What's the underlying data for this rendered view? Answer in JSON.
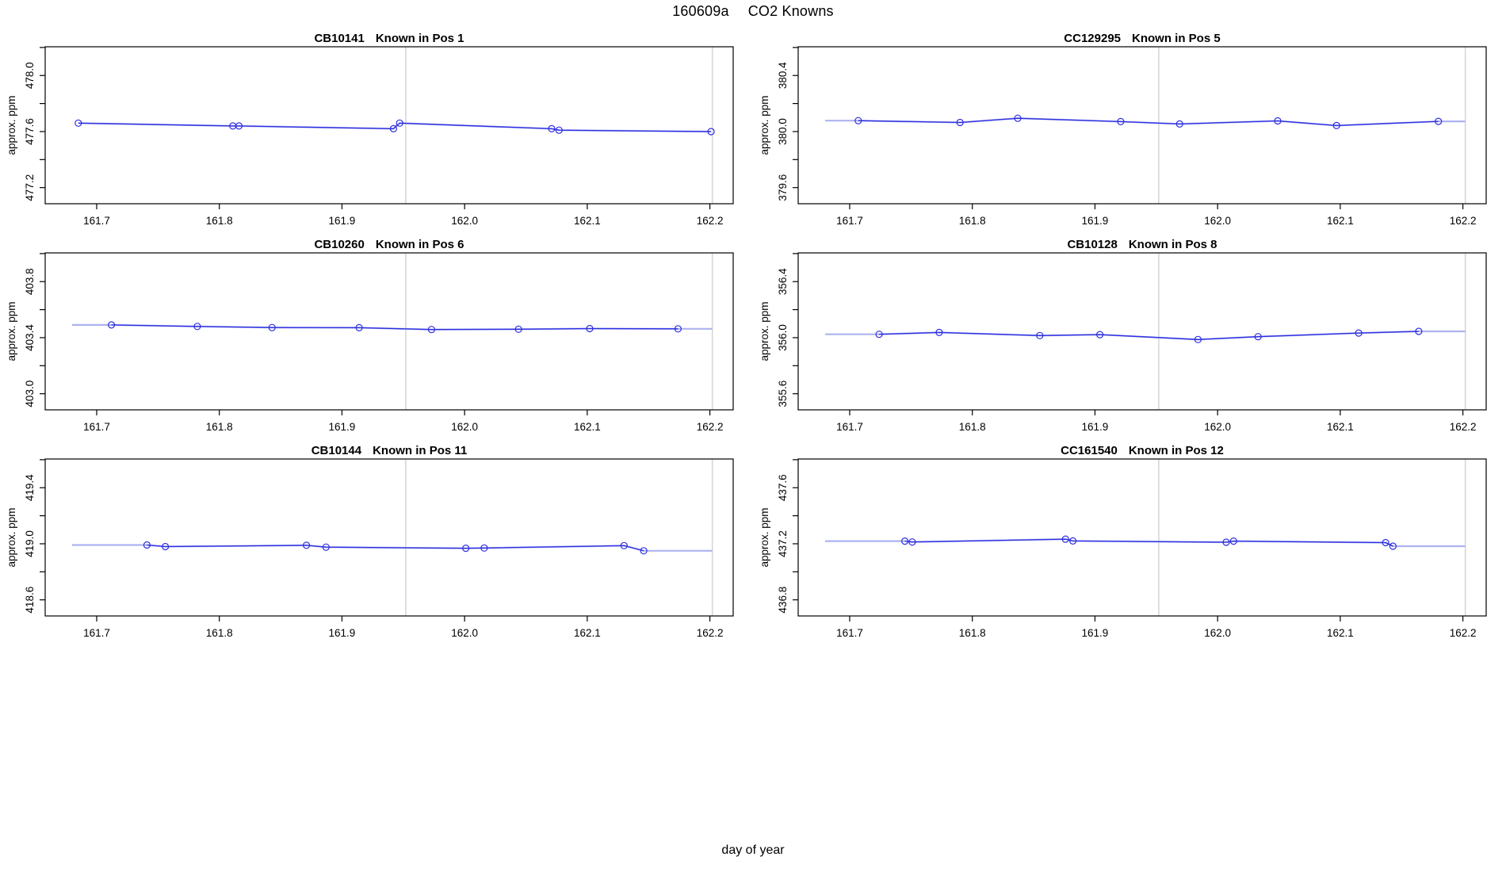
{
  "page_title": {
    "run_id": "160609a",
    "title": "CO2 Knowns"
  },
  "outer_xlabel": "day of year",
  "shared_axis": {
    "ylabel": "approx. ppm",
    "x_ticks": [
      161.7,
      161.8,
      161.9,
      162.0,
      162.1,
      162.2
    ],
    "xlim": [
      161.658,
      162.219
    ],
    "vlines": [
      161.952,
      162.202
    ],
    "grid": "off",
    "legend": "none"
  },
  "style": {
    "line_color": "#2e2ee0",
    "soft_line_color": "#aeb2f0",
    "marker_color": "#2e2ee0",
    "vline_color": "#d6d6d6",
    "box_color": "#000000",
    "text_color": "#000000"
  },
  "chart_data": [
    {
      "type": "line",
      "sample": "CB10141",
      "position_label": "Known in Pos 1",
      "x": [
        161.685,
        161.811,
        161.816,
        161.942,
        161.947,
        162.071,
        162.077,
        162.201
      ],
      "y": [
        477.66,
        477.64,
        477.64,
        477.62,
        477.66,
        477.62,
        477.61,
        477.6
      ],
      "ylim": [
        477.085,
        478.205
      ],
      "y_ticks": [
        477.2,
        477.4,
        477.6,
        477.8,
        478.0,
        478.2
      ],
      "y_tick_labels": [
        477.2,
        477.6,
        478.0
      ],
      "line_span": [
        161.685,
        162.201
      ]
    },
    {
      "type": "line",
      "sample": "CC129295",
      "position_label": "Known in Pos 5",
      "x": [
        161.707,
        161.79,
        161.837,
        161.921,
        161.969,
        162.049,
        162.097,
        162.18
      ],
      "y": [
        380.078,
        380.065,
        380.095,
        380.071,
        380.054,
        380.076,
        380.043,
        380.073
      ],
      "ylim": [
        379.485,
        380.605
      ],
      "y_ticks": [
        379.6,
        379.8,
        380.0,
        380.2,
        380.4,
        380.6
      ],
      "y_tick_labels": [
        379.6,
        380.0,
        380.4
      ],
      "line_span": [
        161.68,
        162.202
      ]
    },
    {
      "type": "line",
      "sample": "CB10260",
      "position_label": "Known in Pos 6",
      "x": [
        161.712,
        161.782,
        161.843,
        161.914,
        161.973,
        162.044,
        162.102,
        162.174
      ],
      "y": [
        403.491,
        403.48,
        403.472,
        403.471,
        403.458,
        403.46,
        403.465,
        403.463
      ],
      "ylim": [
        402.885,
        404.005
      ],
      "y_ticks": [
        403.0,
        403.2,
        403.4,
        403.6,
        403.8,
        404.0
      ],
      "y_tick_labels": [
        403.0,
        403.4,
        403.8
      ],
      "line_span": [
        161.68,
        162.202
      ]
    },
    {
      "type": "line",
      "sample": "CB10128",
      "position_label": "Known in Pos 8",
      "x": [
        161.724,
        161.773,
        161.855,
        161.904,
        161.984,
        162.033,
        162.115,
        162.164
      ],
      "y": [
        356.024,
        356.037,
        356.015,
        356.022,
        355.987,
        356.007,
        356.033,
        356.045
      ],
      "ylim": [
        355.485,
        356.605
      ],
      "y_ticks": [
        355.6,
        355.8,
        356.0,
        356.2,
        356.4,
        356.6
      ],
      "y_tick_labels": [
        355.6,
        356.0,
        356.4
      ],
      "line_span": [
        161.68,
        162.202
      ]
    },
    {
      "type": "line",
      "sample": "CB10144",
      "position_label": "Known in Pos 11",
      "x": [
        161.741,
        161.756,
        161.871,
        161.887,
        162.001,
        162.016,
        162.13,
        162.146
      ],
      "y": [
        418.991,
        418.98,
        418.989,
        418.976,
        418.968,
        418.97,
        418.987,
        418.95
      ],
      "ylim": [
        418.485,
        419.605
      ],
      "y_ticks": [
        418.6,
        418.8,
        419.0,
        419.2,
        419.4,
        419.6
      ],
      "y_tick_labels": [
        418.6,
        419.0,
        419.4
      ],
      "line_span": [
        161.68,
        162.202
      ]
    },
    {
      "type": "line",
      "sample": "CC161540",
      "position_label": "Known in Pos 12",
      "x": [
        161.745,
        161.751,
        161.876,
        161.882,
        162.007,
        162.013,
        162.137,
        162.143
      ],
      "y": [
        437.219,
        437.213,
        437.233,
        437.22,
        437.211,
        437.219,
        437.208,
        437.183
      ],
      "ylim": [
        436.685,
        437.805
      ],
      "y_ticks": [
        436.8,
        437.0,
        437.2,
        437.4,
        437.6,
        437.8
      ],
      "y_tick_labels": [
        436.8,
        437.2,
        437.6
      ],
      "line_span": [
        161.68,
        162.202
      ]
    }
  ]
}
